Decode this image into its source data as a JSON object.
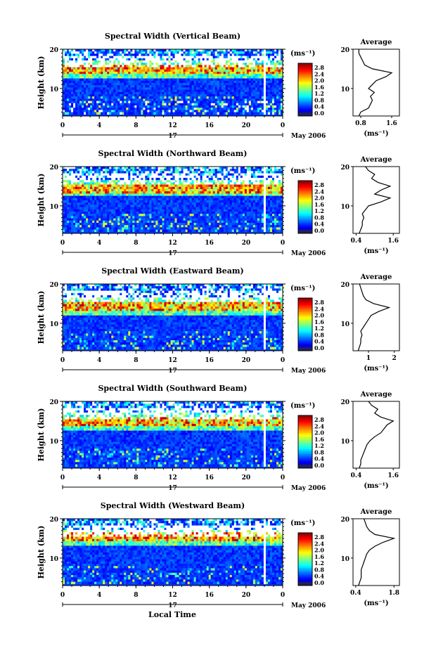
{
  "figure": {
    "xlabel": "Local Time",
    "date_day": "17",
    "date_month": "May 2006",
    "height_label": "Height (km)",
    "colorbar_unit": "(ms⁻¹)",
    "colorbar_ticks": [
      "0.0",
      "0.4",
      "0.8",
      "1.2",
      "1.6",
      "2.0",
      "2.4",
      "2.8"
    ],
    "x_ticks": [
      "0",
      "4",
      "8",
      "12",
      "16",
      "20",
      "0"
    ],
    "y_ticks": [
      "20",
      "10"
    ],
    "profile_title": "Average",
    "profile_xlabel": "(ms⁻¹)"
  },
  "colors": {
    "low": "#1c38c8",
    "mid": "#3fb8e8",
    "high": "#f0e020",
    "peak": "#e02010",
    "gap": "#ffffff"
  },
  "chart_data": [
    {
      "type": "heatmap",
      "title": "Spectral Width (Vertical Beam)",
      "x_range_hours": [
        0,
        24
      ],
      "y_range_km": [
        3,
        20
      ],
      "color_range": [
        0.0,
        3.0
      ],
      "profile": {
        "x_ticks": [
          "0.8",
          "1.6"
        ],
        "x_range": [
          0.6,
          1.8
        ],
        "heights": [
          3,
          4,
          5,
          6,
          7,
          8,
          9,
          10,
          11,
          12,
          13,
          14,
          15,
          16,
          17,
          18,
          19,
          20
        ],
        "values": [
          0.75,
          0.8,
          1.0,
          1.05,
          1.1,
          1.05,
          1.15,
          1.0,
          1.1,
          1.2,
          1.45,
          1.6,
          1.1,
          0.9,
          0.85,
          0.8,
          0.75,
          0.75
        ]
      }
    },
    {
      "type": "heatmap",
      "title": "Spectral Width (Northward Beam)",
      "x_range_hours": [
        0,
        24
      ],
      "y_range_km": [
        3,
        20
      ],
      "color_range": [
        0.0,
        3.0
      ],
      "profile": {
        "x_ticks": [
          "0.4",
          "1.6"
        ],
        "x_range": [
          0.3,
          1.8
        ],
        "heights": [
          3,
          4,
          5,
          6,
          7,
          8,
          9,
          10,
          11,
          12,
          13,
          14,
          15,
          16,
          17,
          18,
          19,
          20
        ],
        "values": [
          0.5,
          0.55,
          0.6,
          0.6,
          0.65,
          0.6,
          0.7,
          0.8,
          1.2,
          1.5,
          1.0,
          1.2,
          1.5,
          1.1,
          0.9,
          1.0,
          0.8,
          0.7
        ]
      }
    },
    {
      "type": "heatmap",
      "title": "Spectral Width (Eastward Beam)",
      "x_range_hours": [
        0,
        24
      ],
      "y_range_km": [
        3,
        20
      ],
      "color_range": [
        0.0,
        3.0
      ],
      "profile": {
        "x_ticks": [
          "1",
          "2"
        ],
        "x_range": [
          0.4,
          2.2
        ],
        "heights": [
          3,
          4,
          5,
          6,
          7,
          8,
          9,
          10,
          11,
          12,
          13,
          14,
          15,
          16,
          17,
          18,
          19,
          20
        ],
        "values": [
          0.6,
          0.65,
          0.7,
          0.7,
          0.75,
          0.7,
          0.8,
          0.9,
          1.0,
          1.1,
          1.4,
          1.8,
          1.2,
          0.9,
          0.8,
          0.75,
          0.7,
          0.65
        ]
      }
    },
    {
      "type": "heatmap",
      "title": "Spectral Width (Southward Beam)",
      "x_range_hours": [
        0,
        24
      ],
      "y_range_km": [
        3,
        20
      ],
      "color_range": [
        0.0,
        3.0
      ],
      "profile": {
        "x_ticks": [
          "0.4",
          "1.6"
        ],
        "x_range": [
          0.3,
          1.8
        ],
        "heights": [
          3,
          4,
          5,
          6,
          7,
          8,
          9,
          10,
          11,
          12,
          13,
          14,
          15,
          16,
          17,
          18,
          19,
          20
        ],
        "values": [
          0.5,
          0.55,
          0.55,
          0.6,
          0.65,
          0.7,
          0.75,
          0.85,
          1.0,
          1.2,
          1.3,
          1.4,
          1.6,
          1.2,
          1.0,
          1.1,
          0.9,
          0.8
        ]
      }
    },
    {
      "type": "heatmap",
      "title": "Spectral Width (Westward Beam)",
      "x_range_hours": [
        0,
        24
      ],
      "y_range_km": [
        3,
        20
      ],
      "color_range": [
        0.0,
        3.0
      ],
      "profile": {
        "x_ticks": [
          "0.4",
          "1.8"
        ],
        "x_range": [
          0.3,
          2.0
        ],
        "heights": [
          3,
          4,
          5,
          6,
          7,
          8,
          9,
          10,
          11,
          12,
          13,
          14,
          15,
          16,
          17,
          18,
          19,
          20
        ],
        "values": [
          0.5,
          0.55,
          0.6,
          0.6,
          0.6,
          0.65,
          0.7,
          0.75,
          0.8,
          0.9,
          1.1,
          1.4,
          1.8,
          1.1,
          0.9,
          0.8,
          0.75,
          0.7
        ]
      }
    }
  ]
}
